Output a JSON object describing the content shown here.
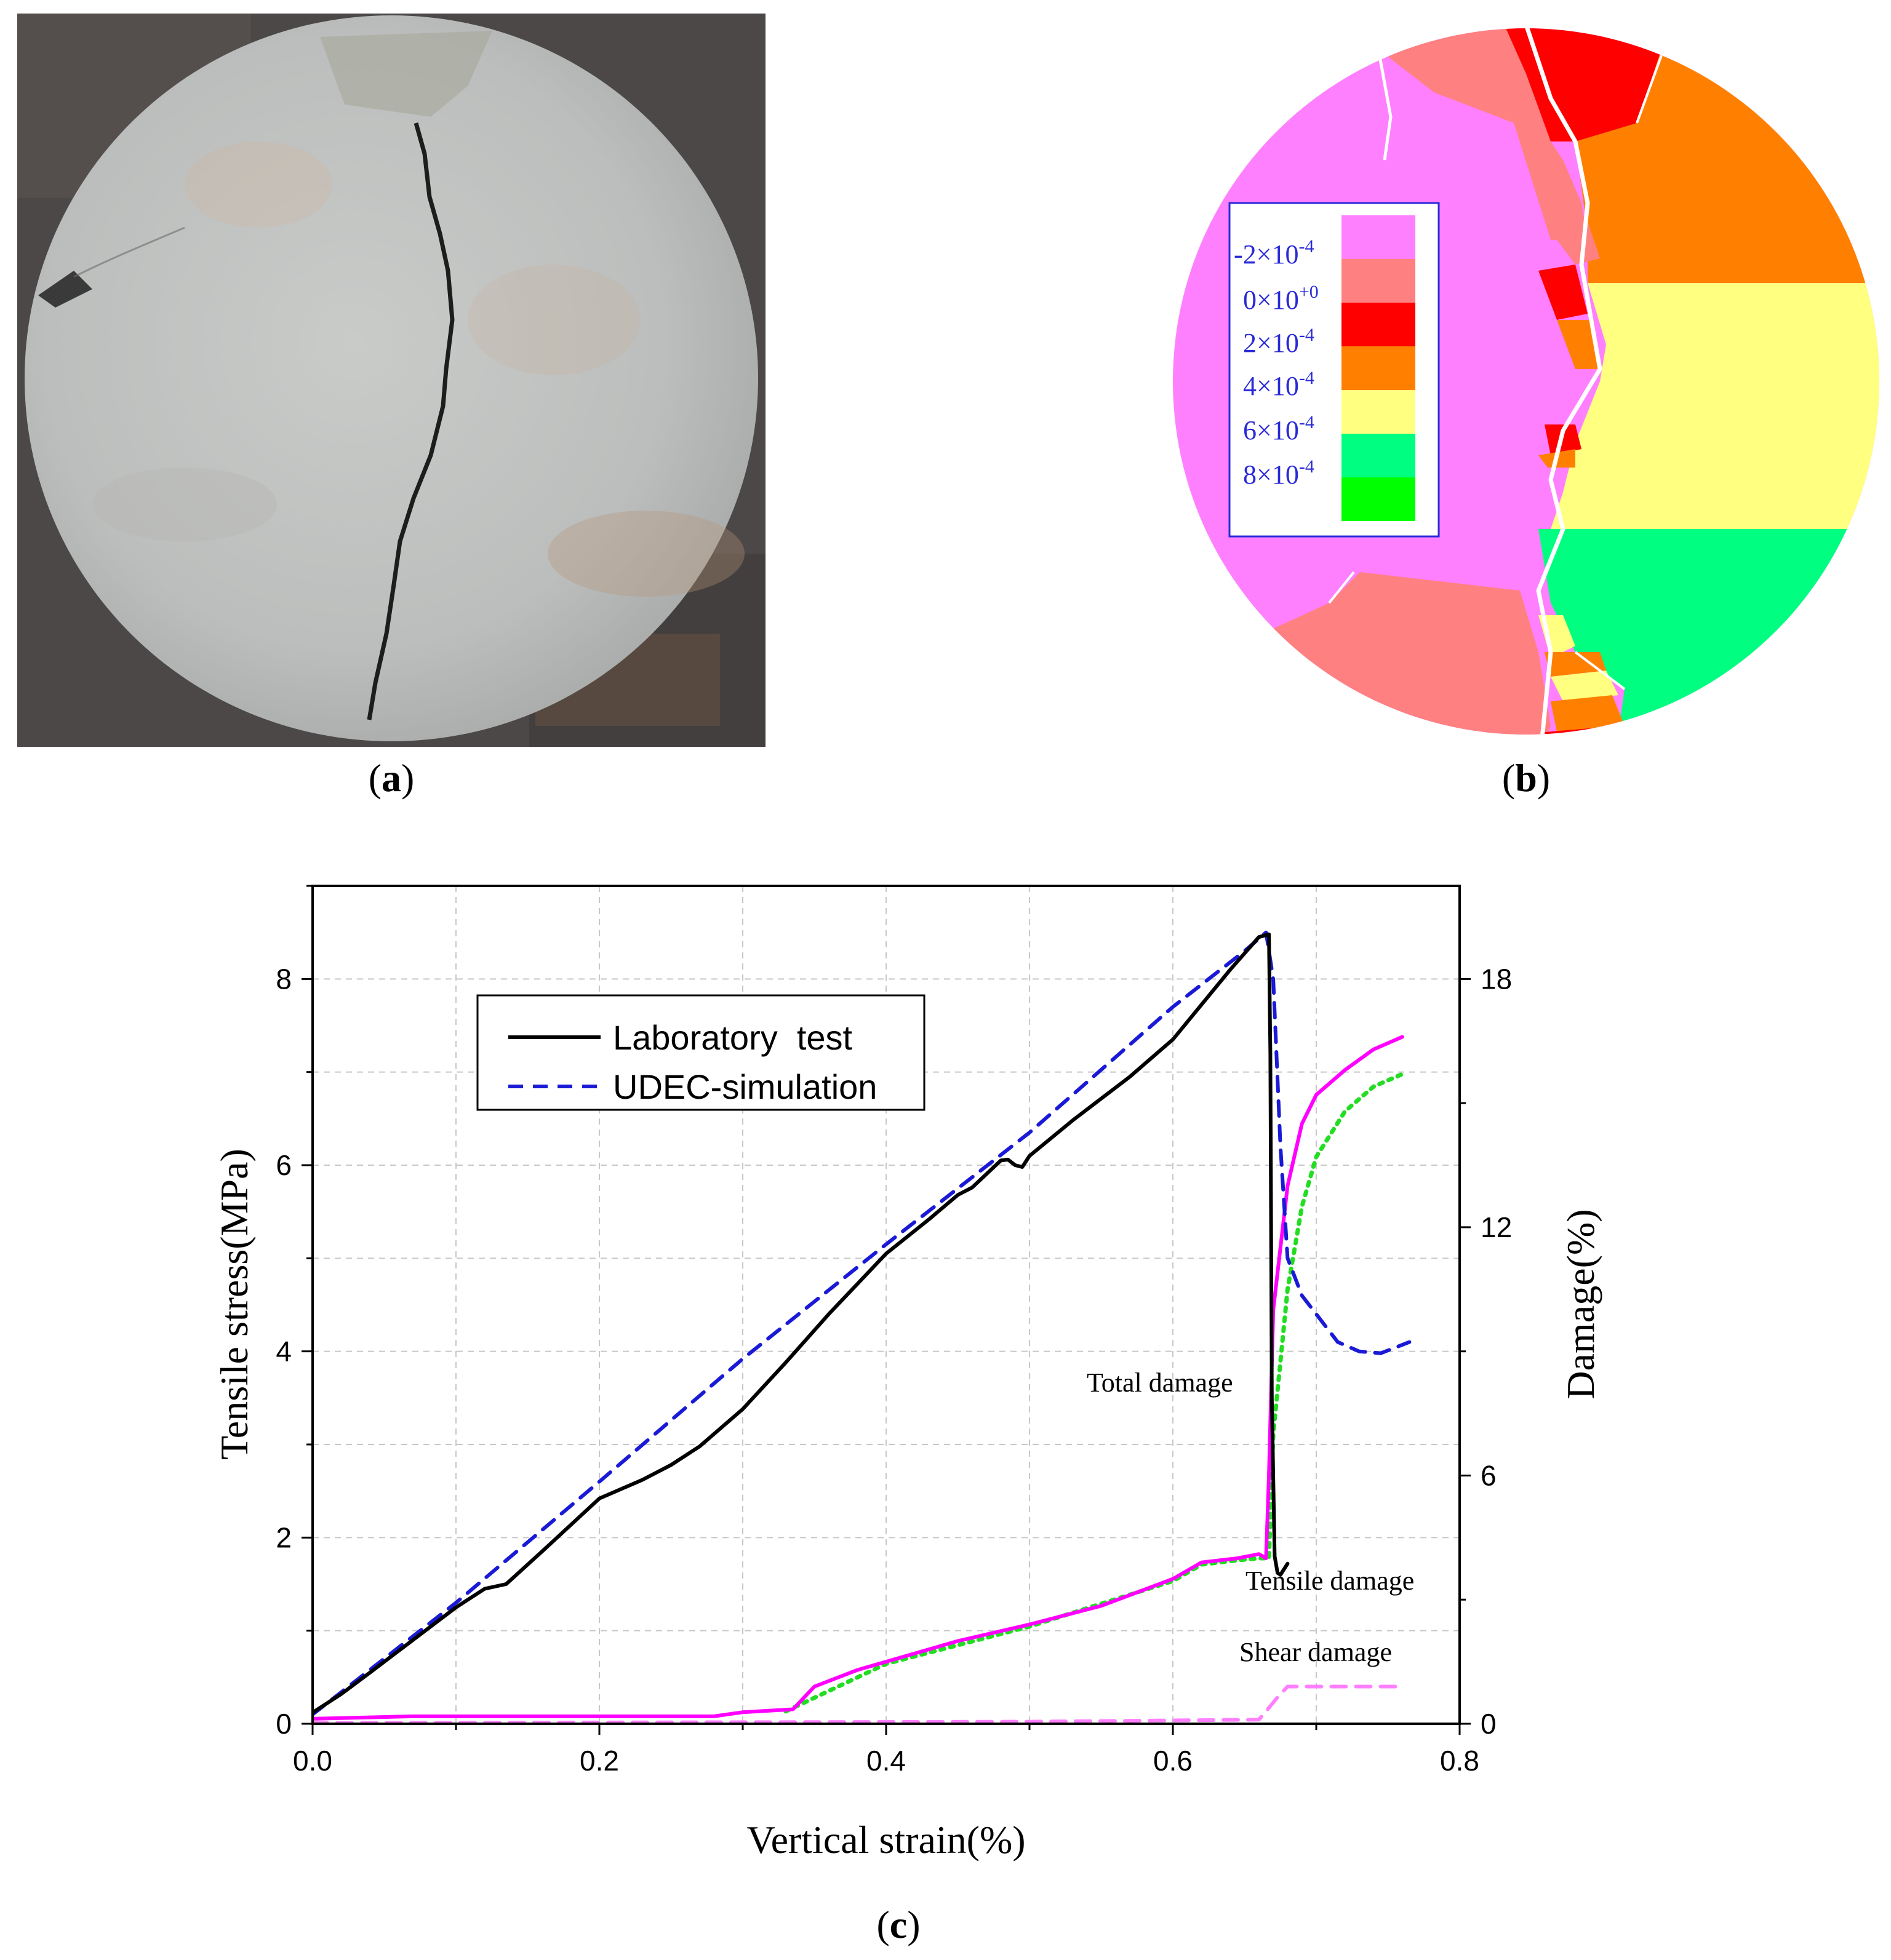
{
  "panels": {
    "a": {
      "label": "a",
      "image": "photo of cracked disc specimen"
    },
    "b": {
      "label": "b",
      "image": "UDEC block displacement contour"
    },
    "c": {
      "label": "c"
    }
  },
  "colorbar": {
    "items": [
      {
        "base": "-2×10",
        "exp": "-4",
        "color": "#ff80ff"
      },
      {
        "base": "0×10",
        "exp": "+0",
        "color": "#ff8080"
      },
      {
        "base": "2×10",
        "exp": "-4",
        "color": "#ff0000"
      },
      {
        "base": "4×10",
        "exp": "-4",
        "color": "#ff8000"
      },
      {
        "base": "6×10",
        "exp": "-4",
        "color": "#ffff80"
      },
      {
        "base": "8×10",
        "exp": "-4",
        "color": "#00ff80"
      }
    ],
    "extra_color": "#00ff00"
  },
  "chart_data": {
    "type": "line",
    "xlabel": "Vertical strain(%)",
    "ylabel": "Tensile stress(MPa)",
    "y2label": "Damage(%)",
    "xlim": [
      0.0,
      0.8
    ],
    "ylim": [
      0,
      9
    ],
    "y2lim": [
      0,
      20.25
    ],
    "xticks": [
      "0.0",
      "0.2",
      "0.4",
      "0.6",
      "0.8"
    ],
    "yticks": [
      "0",
      "2",
      "4",
      "6",
      "8"
    ],
    "y2ticks": [
      "0",
      "6",
      "12",
      "18"
    ],
    "grid": true,
    "legend": {
      "position": "upper-left",
      "entries": [
        {
          "label": "Laboratory  test",
          "color": "#000000",
          "style": "solid"
        },
        {
          "label": "UDEC-simulation",
          "color": "#1a1ad6",
          "style": "dashed"
        }
      ]
    },
    "annotations": [
      "Total damage",
      "Tensile damage",
      "Shear damage"
    ],
    "series": [
      {
        "name": "Laboratory test",
        "axis": "left",
        "color": "#000000",
        "style": "solid",
        "x": [
          0.0,
          0.02,
          0.04,
          0.07,
          0.1,
          0.12,
          0.135,
          0.16,
          0.2,
          0.23,
          0.25,
          0.27,
          0.3,
          0.33,
          0.36,
          0.4,
          0.43,
          0.45,
          0.46,
          0.48,
          0.485,
          0.49,
          0.495,
          0.5,
          0.53,
          0.57,
          0.6,
          0.64,
          0.66,
          0.667,
          0.668,
          0.669,
          0.671,
          0.673,
          0.675,
          0.68
        ],
        "y": [
          0.12,
          0.32,
          0.55,
          0.9,
          1.25,
          1.45,
          1.5,
          1.85,
          2.42,
          2.62,
          2.78,
          2.98,
          3.38,
          3.88,
          4.4,
          5.05,
          5.42,
          5.68,
          5.76,
          6.05,
          6.06,
          6.0,
          5.98,
          6.1,
          6.48,
          6.95,
          7.35,
          8.1,
          8.45,
          8.48,
          7.2,
          3.5,
          1.8,
          1.62,
          1.6,
          1.72
        ]
      },
      {
        "name": "UDEC-simulation",
        "axis": "left",
        "color": "#1a1ad6",
        "style": "dashed",
        "x": [
          0.0,
          0.1,
          0.2,
          0.3,
          0.4,
          0.5,
          0.6,
          0.65,
          0.665,
          0.67,
          0.675,
          0.68,
          0.69,
          0.7,
          0.715,
          0.73,
          0.745,
          0.765
        ],
        "y": [
          0.1,
          1.3,
          2.6,
          3.92,
          5.15,
          6.35,
          7.7,
          8.3,
          8.5,
          8.0,
          6.2,
          5.0,
          4.6,
          4.4,
          4.1,
          4.0,
          3.98,
          4.1
        ]
      },
      {
        "name": "Total damage",
        "axis": "right",
        "color": "#ff00ff",
        "style": "solid",
        "x": [
          0.0,
          0.07,
          0.1,
          0.2,
          0.28,
          0.3,
          0.335,
          0.35,
          0.38,
          0.4,
          0.45,
          0.5,
          0.55,
          0.6,
          0.62,
          0.645,
          0.66,
          0.665,
          0.667,
          0.67,
          0.68,
          0.69,
          0.7,
          0.72,
          0.74,
          0.76
        ],
        "y": [
          0.12,
          0.18,
          0.18,
          0.18,
          0.18,
          0.28,
          0.35,
          0.9,
          1.3,
          1.5,
          2.0,
          2.4,
          2.85,
          3.5,
          3.9,
          4.0,
          4.1,
          4.0,
          6.0,
          10.0,
          13.0,
          14.5,
          15.2,
          15.8,
          16.3,
          16.6
        ]
      },
      {
        "name": "Tensile damage",
        "axis": "right",
        "color": "#22dd22",
        "style": "dotted",
        "x": [
          0.33,
          0.4,
          0.5,
          0.6,
          0.62,
          0.645,
          0.66,
          0.667,
          0.67,
          0.68,
          0.69,
          0.7,
          0.72,
          0.74,
          0.76
        ],
        "y": [
          0.3,
          1.45,
          2.35,
          3.45,
          3.85,
          3.95,
          4.0,
          4.0,
          7.0,
          10.5,
          12.5,
          13.7,
          14.8,
          15.4,
          15.7
        ]
      },
      {
        "name": "Shear damage",
        "axis": "right",
        "color": "#ff80ff",
        "style": "dashed",
        "x": [
          0.0,
          0.5,
          0.66,
          0.665,
          0.672,
          0.68,
          0.7,
          0.76
        ],
        "y": [
          0.02,
          0.05,
          0.1,
          0.3,
          0.6,
          0.9,
          0.9,
          0.9
        ]
      }
    ]
  }
}
